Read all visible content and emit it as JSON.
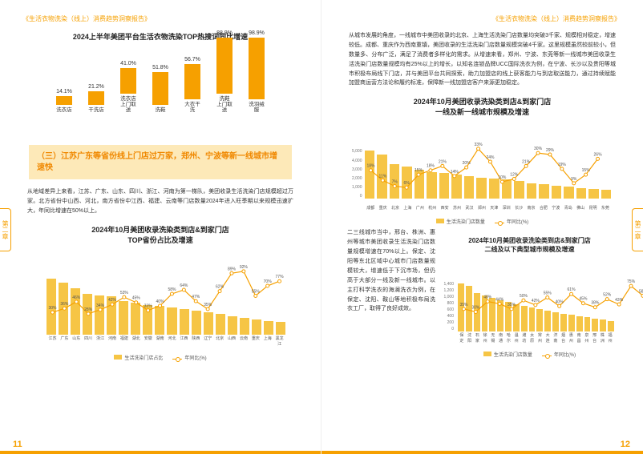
{
  "header": "《生活衣物洗染（线上）消费趋势洞察报告》",
  "side_tab": "第二章",
  "page_left_num": "11",
  "page_right_num": "12",
  "chart1": {
    "title": "2024上半年美团平台生活衣物洗染TOP热搜词同比增速",
    "labels": [
      "洗衣店",
      "干洗店",
      "洗衣店\n上门取送",
      "洗鞋",
      "大衣干洗",
      "洗鞋\n上门取送",
      "洗羽绒服"
    ],
    "values_text": [
      "14.1%",
      "21.2%",
      "41.0%",
      "51.8%",
      "56.7%",
      "88.9%",
      "98.9%"
    ],
    "values": [
      14.1,
      21.2,
      41.0,
      51.8,
      56.7,
      88.9,
      98.9
    ],
    "bar_color": "#f6a000",
    "max": 100
  },
  "highlight": {
    "text": "（三）江苏广东等省份线上门店过万家，郑州、宁波等新一线城市增速快"
  },
  "para1": "从地域差异上来看，江苏、广东、山东、四川、浙江、河南为第一梯队，美团收录生活洗染门店规模超过万家。北方省份中山西、河北，南方省份中江西、福建、云南等门店数量2024年进入旺季期以来规模迅速扩大，年同比增速在50%以上。",
  "chart2": {
    "title": "2024年10月美团收录洗染类到店&到家门店\nTOP省份占比及增速",
    "cats": [
      "江苏",
      "广东",
      "山东",
      "四川",
      "浙江",
      "河南",
      "福建",
      "湖北",
      "安徽",
      "湖南",
      "河北",
      "江西",
      "陕西",
      "辽宁",
      "北京",
      "山西",
      "云南",
      "重庆",
      "上海",
      "黑龙江"
    ],
    "bars": [
      100,
      93,
      82,
      72,
      70,
      68,
      60,
      56,
      53,
      51,
      48,
      45,
      42,
      39,
      36,
      33,
      30,
      27,
      24,
      22
    ],
    "line_pct": [
      30,
      36,
      46,
      28,
      34,
      42,
      53,
      45,
      33,
      40,
      58,
      64,
      47,
      35,
      62,
      89,
      92,
      55,
      70,
      77
    ],
    "line_labels": [
      "30%",
      "36%",
      "46%",
      "28%",
      "34%",
      "42%",
      "53%",
      "45%",
      "33%",
      "40%",
      "58%",
      "64%",
      "47%",
      "35%",
      "62%",
      "89%",
      "92%",
      "55%",
      "70%",
      "77%"
    ],
    "legend_bar": "生活洗染门店占比",
    "legend_line": "年同比(%)",
    "bar_color": "#f6c545",
    "line_color": "#f6a000"
  },
  "para2": "从城市发展的角度，一线城市中美团收录的北京、上海生活洗染门店数量均突破3千家、规模相对稳定，增速较低。成都、重庆作为西南重镇，美团收录的生活洗染门店数量规模突破4千家。这里规模虽然较前较小，但数量多、分布广泛，满足了消费者多样化的需求。从增速来看，郑州、宁波、东莞等新一线城市美团收录生活洗染门店数量规模均有25%以上的增长，以知名连锁品牌UCC国际洗衣为例，在宁波、长沙以及贵阳等城市积极布局线下门店，并与美团平台共同探索，助力加盟店的线上获客能力与到店取送能力，通过持续赋能加盟商运营方法论和履约标准，保障新一线加盟店客户来源更加稳定。",
  "chart3": {
    "title": "2024年10月美团收录洗染类到店&到家门店\n一线及新一线城市规模及增速",
    "cats": [
      "成都",
      "重庆",
      "北京",
      "上海",
      "广州",
      "杭州",
      "西安",
      "苏州",
      "武汉",
      "郑州",
      "天津",
      "深圳",
      "长沙",
      "南京",
      "合肥",
      "宁波",
      "青岛",
      "佛山",
      "昆明",
      "东莞"
    ],
    "bars": [
      100,
      92,
      72,
      68,
      61,
      55,
      54,
      51,
      47,
      44,
      42,
      40,
      37,
      33,
      30,
      28,
      26,
      23,
      21,
      19
    ],
    "line_pct": [
      18,
      11,
      7,
      6,
      15,
      18,
      21,
      14,
      20,
      33,
      24,
      10,
      12,
      21,
      30,
      29,
      19,
      9,
      15,
      26
    ],
    "line_labels": [
      "18%",
      "11%",
      "7%",
      "6%",
      "15%",
      "18%",
      "21%",
      "14%",
      "20%",
      "33%",
      "24%",
      "10%",
      "12%",
      "21%",
      "30%",
      "29%",
      "19%",
      "9%",
      "15%",
      "26%"
    ],
    "yticks": [
      "0",
      "1,000",
      "2,000",
      "3,000",
      "4,000",
      "5,000"
    ],
    "legend_bar": "生活洗染门店数量",
    "legend_line": "年同比(%)"
  },
  "para3": "二三线城市当中，邢台、株洲、惠州等城市美团收录生活洗染门店数量规模增速在70%以上。保定、沈阳等东北区域中心城市门店数量规模较大，增速低于下沉市场，但仍高于大部分一线及新一线城市。以主打科学洗衣的海澜洗衣为例，在保定、沈阳、鞍山等地积极布局洗衣工厂，取得了良好成效。",
  "chart4": {
    "title": "2024年10月美团收录洗染类到店&到家门店\n二线及以下典型城市规模及增速",
    "cats": [
      "保定",
      "沈阳",
      "石家",
      "徐州",
      "无锡",
      "南通",
      "哈尔",
      "温州",
      "潍坊",
      "太原",
      "常州",
      "大连",
      "济南",
      "烟台",
      "惠州",
      "南昌",
      "泉州",
      "邢台",
      "株洲",
      "福州"
    ],
    "bars": [
      100,
      95,
      80,
      75,
      70,
      66,
      62,
      58,
      54,
      50,
      47,
      44,
      41,
      38,
      35,
      32,
      30,
      27,
      25,
      23
    ],
    "line_pct": [
      35,
      30,
      48,
      44,
      35,
      50,
      42,
      55,
      40,
      61,
      45,
      38,
      52,
      43,
      75,
      58,
      50,
      92,
      88,
      45
    ],
    "line_labels": [
      "35%",
      "30%",
      "48%",
      "44%",
      "35%",
      "50%",
      "42%",
      "55%",
      "40%",
      "61%",
      "45%",
      "38%",
      "52%",
      "43%",
      "75%",
      "58%",
      "50%",
      "92%",
      "88%",
      "45%"
    ],
    "yticks": [
      "0",
      "200",
      "400",
      "600",
      "800",
      "1,000",
      "1,200",
      "1,400"
    ],
    "legend_bar": "生活洗染门店数量",
    "legend_line": "年同比(%)"
  },
  "colors": {
    "accent": "#f6a000",
    "bar_light": "#f6c545",
    "text": "#333"
  }
}
